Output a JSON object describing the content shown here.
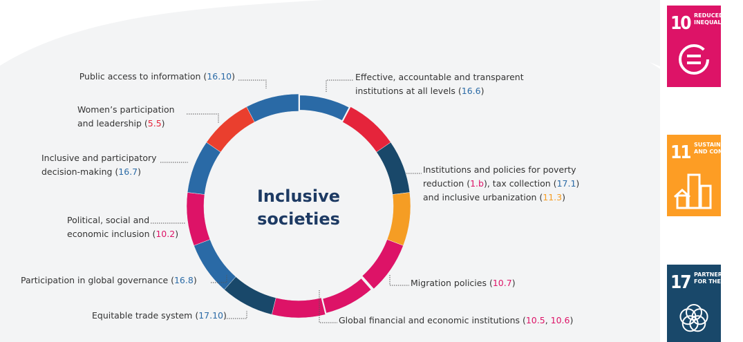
{
  "center": {
    "lines": [
      "Inclusive",
      "societies"
    ]
  },
  "segments": [
    "#2a6aa6",
    "#e5243b",
    "#19486a",
    "#f59d24",
    "#dd1367",
    "#dd1367",
    "#dd1367",
    "#19486a",
    "#2a6aa6",
    "#dd1367",
    "#2a6aa6",
    "#ea3f2e",
    "#2a6aa6"
  ],
  "callouts": [
    {
      "lines": [
        [
          {
            "text": "Public access to information ("
          },
          {
            "text": "16.10",
            "color": "#2a6aa6"
          },
          {
            "text": ")"
          }
        ]
      ]
    },
    {
      "lines": [
        [
          {
            "text": "Effective, accountable and transparent"
          }
        ],
        [
          {
            "text": "institutions at all levels ("
          },
          {
            "text": "16.6",
            "color": "#2a6aa6"
          },
          {
            "text": ")"
          }
        ]
      ]
    },
    {
      "lines": [
        [
          {
            "text": "Women’s participation"
          }
        ],
        [
          {
            "text": "and leadership ("
          },
          {
            "text": "5.5",
            "color": "#e5243b"
          },
          {
            "text": ")"
          }
        ]
      ]
    },
    {
      "lines": [
        [
          {
            "text": "Inclusive and participatory"
          }
        ],
        [
          {
            "text": "decision-making ("
          },
          {
            "text": "16.7",
            "color": "#2a6aa6"
          },
          {
            "text": ")"
          }
        ]
      ]
    },
    {
      "lines": [
        [
          {
            "text": "Institutions and policies for poverty"
          }
        ],
        [
          {
            "text": "reduction ("
          },
          {
            "text": "1.b",
            "color": "#dd1367"
          },
          {
            "text": "), tax collection ("
          },
          {
            "text": "17.1",
            "color": "#2a6aa6"
          },
          {
            "text": ")"
          }
        ],
        [
          {
            "text": "and inclusive urbanization ("
          },
          {
            "text": "11.3",
            "color": "#f59d24"
          },
          {
            "text": ")"
          }
        ]
      ]
    },
    {
      "lines": [
        [
          {
            "text": "Political, social and"
          }
        ],
        [
          {
            "text": "economic inclusion ("
          },
          {
            "text": "10.2",
            "color": "#dd1367"
          },
          {
            "text": ")"
          }
        ]
      ]
    },
    {
      "lines": [
        [
          {
            "text": "Participation in global governance ("
          },
          {
            "text": "16.8",
            "color": "#2a6aa6"
          },
          {
            "text": ")"
          }
        ]
      ]
    },
    {
      "lines": [
        [
          {
            "text": "Migration policies ("
          },
          {
            "text": "10.7",
            "color": "#dd1367"
          },
          {
            "text": ")"
          }
        ]
      ]
    },
    {
      "lines": [
        [
          {
            "text": "Equitable trade system ("
          },
          {
            "text": "17.10",
            "color": "#2a6aa6"
          },
          {
            "text": ")"
          }
        ]
      ]
    },
    {
      "lines": [
        [
          {
            "text": "Global financial and economic institutions ("
          },
          {
            "text": "10.5",
            "color": "#dd1367"
          },
          {
            "text": ", "
          },
          {
            "text": "10.6",
            "color": "#dd1367"
          },
          {
            "text": ")"
          }
        ]
      ]
    }
  ],
  "badges": [
    {
      "number": "10",
      "title": [
        "REDUCED",
        "INEQUALITIES"
      ],
      "color": "#dd1367"
    },
    {
      "number": "11",
      "title": [
        "SUSTAINABLE CITIES",
        "AND COMMUNITIES"
      ],
      "color": "#fd9d24"
    },
    {
      "number": "17",
      "title": [
        "PARTNERSHIPS",
        "FOR THE GOALS"
      ],
      "color": "#19486a"
    }
  ]
}
